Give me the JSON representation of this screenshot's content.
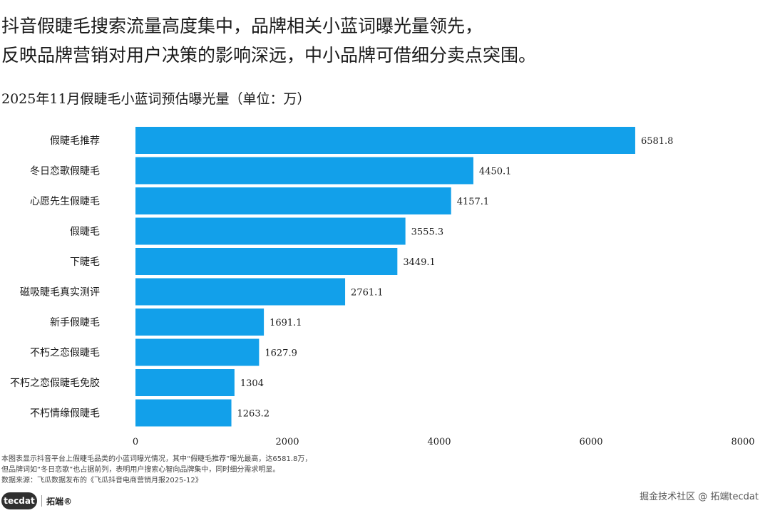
{
  "headline": {
    "line1": "抖音假睫毛搜索流量高度集中，品牌相关小蓝词曝光量领先，",
    "line2": "反映品牌营销对用户决策的影响深远，中小品牌可借细分卖点突围。"
  },
  "colors": {
    "bar": "#12a0ea"
  },
  "chart_data": {
    "type": "bar",
    "orientation": "horizontal",
    "title": "2025年11月假睫毛小蓝词预估曝光量（单位：万）",
    "xlabel": "",
    "ylabel": "",
    "xlim": [
      0,
      8000
    ],
    "xticks": [
      "0",
      "2000",
      "4000",
      "6000",
      "8000"
    ],
    "grid": false,
    "categories": [
      "假睫毛推荐",
      "冬日恋歌假睫毛",
      "心愿先生假睫毛",
      "假睫毛",
      "下睫毛",
      "磁吸睫毛真实测评",
      "新手假睫毛",
      "不朽之恋假睫毛",
      "不朽之恋假睫毛免胶",
      "不朽情缘假睫毛"
    ],
    "values": [
      6581.8,
      4450.1,
      4157.1,
      3555.3,
      3449.1,
      2761.1,
      1691.1,
      1627.9,
      1304,
      1263.2
    ],
    "value_labels": [
      "6581.8",
      "4450.1",
      "4157.1",
      "3555.3",
      "3449.1",
      "2761.1",
      "1691.1",
      "1627.9",
      "1304",
      "1263.2"
    ]
  },
  "notes": {
    "line1": "本图表显示抖音平台上假睫毛品类的小蓝词曝光情况，其中“假睫毛推荐”曝光最高，达6581.8万，",
    "line2": "但品牌词如“冬日恋歌”也占据前列，表明用户搜索心智向品牌集中，同时细分需求明显。",
    "line3": "数据来源：飞瓜数据发布的《飞瓜抖音电商营销月报2025-12》"
  },
  "brand": {
    "logo_text": "tecdat",
    "name_cn": "拓端®"
  },
  "watermark": "掘金技术社区 @ 拓端tecdat"
}
